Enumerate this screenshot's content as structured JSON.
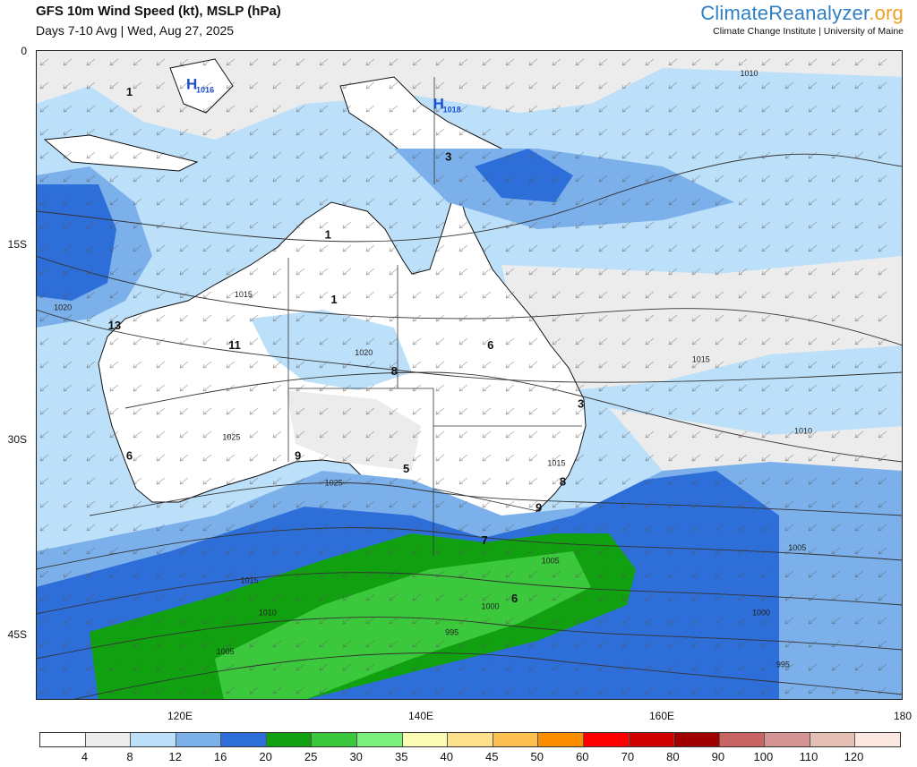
{
  "header": {
    "title": "GFS 10m Wind Speed (kt), MSLP (hPa)",
    "subtitle": "Days 7-10 Avg | Wed, Aug 27, 2025"
  },
  "brand": {
    "name_part1": "Climate",
    "name_part2": "Reanalyzer",
    "name_part3": ".org",
    "affiliation": "Climate Change Institute | University of Maine"
  },
  "axes": {
    "lat_labels": [
      "0",
      "15S",
      "30S",
      "45S"
    ],
    "lon_labels": [
      "120E",
      "140E",
      "160E",
      "180"
    ]
  },
  "map": {
    "lon_range": [
      108,
      180
    ],
    "lat_range": [
      0,
      -50
    ],
    "pressure_centers": [
      {
        "label": "H",
        "value": "1016",
        "lon": 120.5,
        "lat": -3.0
      },
      {
        "label": "H",
        "value": "1018",
        "lon": 141.0,
        "lat": -4.5
      }
    ],
    "isobar_labels": [
      {
        "text": "1010",
        "lon": 166.5,
        "lat": -2.0
      },
      {
        "text": "1015",
        "lon": 124.5,
        "lat": -19.0
      },
      {
        "text": "1020",
        "lon": 109.5,
        "lat": -20.0
      },
      {
        "text": "1020",
        "lon": 134.5,
        "lat": -23.5
      },
      {
        "text": "1025",
        "lon": 123.5,
        "lat": -30.0
      },
      {
        "text": "1025",
        "lon": 132.0,
        "lat": -33.5
      },
      {
        "text": "1015",
        "lon": 150.5,
        "lat": -32.0
      },
      {
        "text": "1015",
        "lon": 162.5,
        "lat": -24.0
      },
      {
        "text": "1010",
        "lon": 171.0,
        "lat": -29.5
      },
      {
        "text": "1010",
        "lon": 126.5,
        "lat": -43.5
      },
      {
        "text": "1015",
        "lon": 125.0,
        "lat": -41.0
      },
      {
        "text": "1005",
        "lon": 123.0,
        "lat": -46.5
      },
      {
        "text": "1005",
        "lon": 150.0,
        "lat": -39.5
      },
      {
        "text": "1005",
        "lon": 170.5,
        "lat": -38.5
      },
      {
        "text": "1000",
        "lon": 145.0,
        "lat": -43.0
      },
      {
        "text": "1000",
        "lon": 167.5,
        "lat": -43.5
      },
      {
        "text": "995",
        "lon": 142.0,
        "lat": -45.0
      },
      {
        "text": "995",
        "lon": 169.5,
        "lat": -47.5
      }
    ],
    "station_values": [
      {
        "text": "1",
        "lon": 132.0,
        "lat": -14.5
      },
      {
        "text": "1",
        "lon": 115.5,
        "lat": -3.5
      },
      {
        "text": "1",
        "lon": 132.5,
        "lat": -19.5
      },
      {
        "text": "3",
        "lon": 142.0,
        "lat": -8.5
      },
      {
        "text": "6",
        "lon": 145.5,
        "lat": -23.0
      },
      {
        "text": "11",
        "lon": 124.0,
        "lat": -23.0
      },
      {
        "text": "13",
        "lon": 114.0,
        "lat": -21.5
      },
      {
        "text": "8",
        "lon": 137.5,
        "lat": -25.0
      },
      {
        "text": "5",
        "lon": 138.5,
        "lat": -32.5
      },
      {
        "text": "9",
        "lon": 129.5,
        "lat": -31.5
      },
      {
        "text": "6",
        "lon": 115.5,
        "lat": -31.5
      },
      {
        "text": "3",
        "lon": 153.0,
        "lat": -27.5
      },
      {
        "text": "8",
        "lon": 151.5,
        "lat": -33.5
      },
      {
        "text": "9",
        "lon": 149.5,
        "lat": -35.5
      },
      {
        "text": "7",
        "lon": 145.0,
        "lat": -38.0
      },
      {
        "text": "6",
        "lon": 147.5,
        "lat": -42.5
      }
    ]
  },
  "colorbar": {
    "ticks": [
      "4",
      "8",
      "12",
      "16",
      "20",
      "25",
      "30",
      "35",
      "40",
      "45",
      "50",
      "60",
      "70",
      "80",
      "90",
      "100",
      "110",
      "120"
    ],
    "colors": [
      "#ffffff",
      "#ececec",
      "#bde0fa",
      "#7cb0ea",
      "#2e6ed8",
      "#10a010",
      "#3cc83c",
      "#7cf07c",
      "#fcfcb4",
      "#fce08c",
      "#fcc050",
      "#fc8c00",
      "#fc0000",
      "#d00000",
      "#a00000",
      "#c86464",
      "#d49494",
      "#e4c0b4",
      "#fce8e0"
    ]
  }
}
